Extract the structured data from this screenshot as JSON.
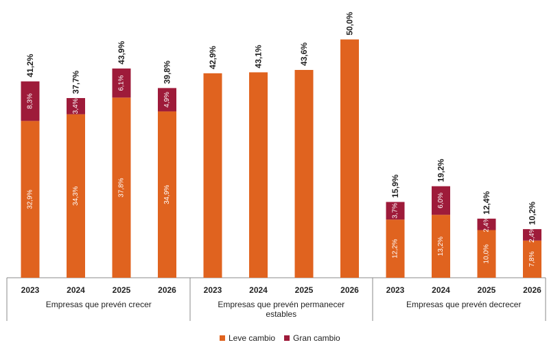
{
  "chart_data": {
    "type": "bar",
    "stacked": true,
    "groups": [
      {
        "label": "Empresas que prevén crecer",
        "years": [
          "2023",
          "2024",
          "2025",
          "2026"
        ],
        "leve": [
          32.9,
          34.3,
          37.8,
          34.9
        ],
        "gran": [
          8.3,
          3.4,
          6.1,
          4.9
        ],
        "leve_labels": [
          "32,9%",
          "34,3%",
          "37,8%",
          "34,9%"
        ],
        "gran_labels": [
          "8,3%",
          "3,4%",
          "6,1%",
          "4,9%"
        ],
        "totals": [
          41.2,
          37.7,
          43.9,
          39.8
        ],
        "total_labels": [
          "41,2%",
          "37,7%",
          "43,9%",
          "39,8%"
        ]
      },
      {
        "label": "Empresas que prevén permanecer estables",
        "label_lines": [
          "Empresas que prevén permanecer",
          "estables"
        ],
        "years": [
          "2023",
          "2024",
          "2025",
          "2026"
        ],
        "leve": [
          42.9,
          43.1,
          43.6,
          50.0
        ],
        "gran": [
          0,
          0,
          0,
          0
        ],
        "leve_labels": [
          "",
          "",
          "",
          ""
        ],
        "gran_labels": [
          "",
          "",
          "",
          ""
        ],
        "totals": [
          42.9,
          43.1,
          43.6,
          50.0
        ],
        "total_labels": [
          "42,9%",
          "43,1%",
          "43,6%",
          "50,0%"
        ]
      },
      {
        "label": "Empresas que prevén decrecer",
        "years": [
          "2023",
          "2024",
          "2025",
          "2026"
        ],
        "leve": [
          12.2,
          13.2,
          10.0,
          7.8
        ],
        "gran": [
          3.7,
          6.0,
          2.4,
          2.4
        ],
        "leve_labels": [
          "12,2%",
          "13,2%",
          "10,0%",
          "7,8%"
        ],
        "gran_labels": [
          "3,7%",
          "6,0%",
          "2,4%",
          "2,4%"
        ],
        "totals": [
          15.9,
          19.2,
          12.4,
          10.2
        ],
        "total_labels": [
          "15,9%",
          "19,2%",
          "12,4%",
          "10,2%"
        ]
      }
    ],
    "series": [
      {
        "name": "Leve cambio",
        "color": "#E0631F"
      },
      {
        "name": "Gran cambio",
        "color": "#9E1B3A"
      }
    ],
    "ylim": [
      0,
      50
    ],
    "grid": false,
    "legend_position": "bottom-center"
  }
}
